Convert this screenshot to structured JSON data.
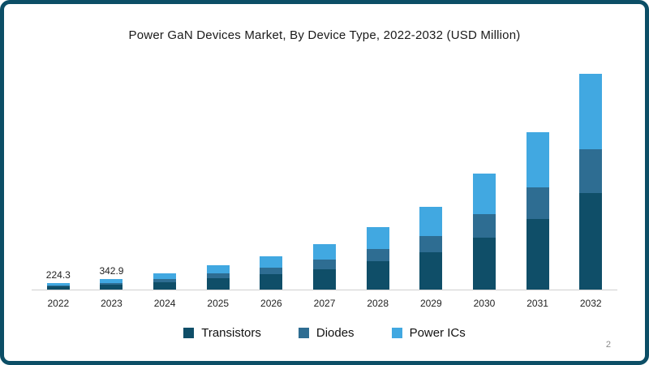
{
  "page": {
    "page_number": "2",
    "border_color": "#0c4e66",
    "background_color": "#ffffff"
  },
  "chart_data": {
    "type": "bar",
    "stacked": true,
    "title": "Power GaN Devices Market, By Device Type, 2022-2032 (USD Million)",
    "xlabel": "",
    "ylabel": "USD Million",
    "grid": false,
    "legend_position": "bottom",
    "ylim": [
      0,
      7300
    ],
    "categories": [
      "2022",
      "2023",
      "2024",
      "2025",
      "2026",
      "2027",
      "2028",
      "2029",
      "2030",
      "2031",
      "2032"
    ],
    "series": [
      {
        "name": "Transistors",
        "color": "#0f4e68",
        "values": [
          101.0,
          154.3,
          236,
          360,
          495,
          675,
          922,
          1215,
          1710,
          2318,
          3172
        ]
      },
      {
        "name": "Diodes",
        "color": "#2e6d92",
        "values": [
          44.9,
          68.6,
          105,
          160,
          220,
          300,
          410,
          540,
          760,
          1030,
          1410
        ]
      },
      {
        "name": "Power ICs",
        "color": "#41a8e1",
        "values": [
          78.4,
          120.0,
          183,
          280,
          385,
          525,
          718,
          945,
          1330,
          1802,
          2468
        ]
      }
    ],
    "totals": [
      224.3,
      342.9,
      524,
      800,
      1100,
      1500,
      2050,
      2700,
      3800,
      5150,
      7050
    ],
    "data_labels": [
      "224.3",
      "342.9",
      "",
      "",
      "",
      "",
      "",
      "",
      "",
      "",
      ""
    ]
  }
}
